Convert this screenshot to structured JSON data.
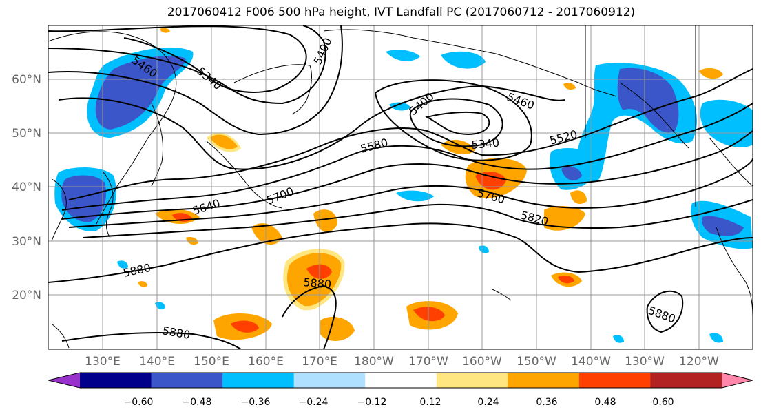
{
  "title": "2017060412 F006 500 hPa height, IVT Landfall PC (2017060712 - 2017060912)",
  "lat_labels": [
    "60°N",
    "50°N",
    "40°N",
    "30°N",
    "20°N"
  ],
  "lon_labels": [
    "130°E",
    "140°E",
    "150°E",
    "160°E",
    "170°E",
    "180°W",
    "170°W",
    "160°W",
    "150°W",
    "140°W",
    "130°W",
    "120°W"
  ],
  "contour_labels": [
    "5460",
    "5340",
    "5400",
    "5400",
    "5460",
    "5340",
    "5520",
    "5580",
    "5640",
    "5700",
    "5760",
    "5820",
    "5880",
    "5880",
    "5880",
    "5880"
  ],
  "colorbar": {
    "ticks": [
      "−0.60",
      "−0.48",
      "−0.36",
      "−0.24",
      "−0.12",
      "0.12",
      "0.24",
      "0.36",
      "0.48",
      "0.60"
    ],
    "colors": [
      "#9932cc",
      "#00008b",
      "#3a56c8",
      "#00bfff",
      "#b0e0ff",
      "#ffffff",
      "#ffe680",
      "#ffa500",
      "#ff4000",
      "#b22222",
      "#ff88aa"
    ]
  },
  "colors": {
    "contour": "#000000",
    "grid": "#999999",
    "coast": "#000000"
  }
}
